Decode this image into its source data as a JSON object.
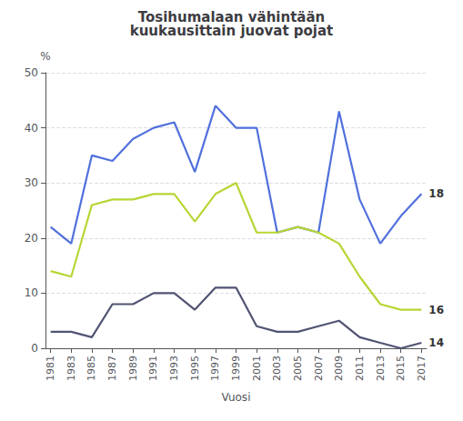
{
  "chart_data": {
    "type": "line",
    "title": "Tosihumalaan vähintään\nkuukausittain juovat pojat",
    "xlabel": "Vuosi",
    "ylabel": "%",
    "x": [
      1981,
      1983,
      1985,
      1987,
      1989,
      1991,
      1993,
      1995,
      1997,
      1999,
      2001,
      2003,
      2005,
      2007,
      2009,
      2011,
      2013,
      2015,
      2017
    ],
    "xlim": [
      1980.5,
      2017.5
    ],
    "xticks": [
      1981,
      1983,
      1985,
      1987,
      1989,
      1991,
      1993,
      1995,
      1997,
      1999,
      2001,
      2003,
      2005,
      2007,
      2009,
      2011,
      2013,
      2015,
      2017
    ],
    "ylim": [
      0,
      50
    ],
    "yticks": [
      0,
      10,
      20,
      30,
      40,
      50
    ],
    "grid": true,
    "series": [
      {
        "name": "18",
        "values": [
          22,
          19,
          35,
          34,
          38,
          40,
          41,
          32,
          44,
          40,
          40,
          21,
          22,
          21,
          43,
          27,
          19,
          24,
          28
        ]
      },
      {
        "name": "16",
        "values": [
          14,
          13,
          26,
          27,
          27,
          28,
          28,
          23,
          28,
          30,
          21,
          21,
          22,
          21,
          19,
          13,
          8,
          7,
          7
        ]
      },
      {
        "name": "14",
        "values": [
          3,
          3,
          2,
          8,
          8,
          10,
          10,
          7,
          11,
          11,
          4,
          3,
          3,
          4,
          5,
          2,
          1,
          0,
          1
        ]
      }
    ]
  }
}
